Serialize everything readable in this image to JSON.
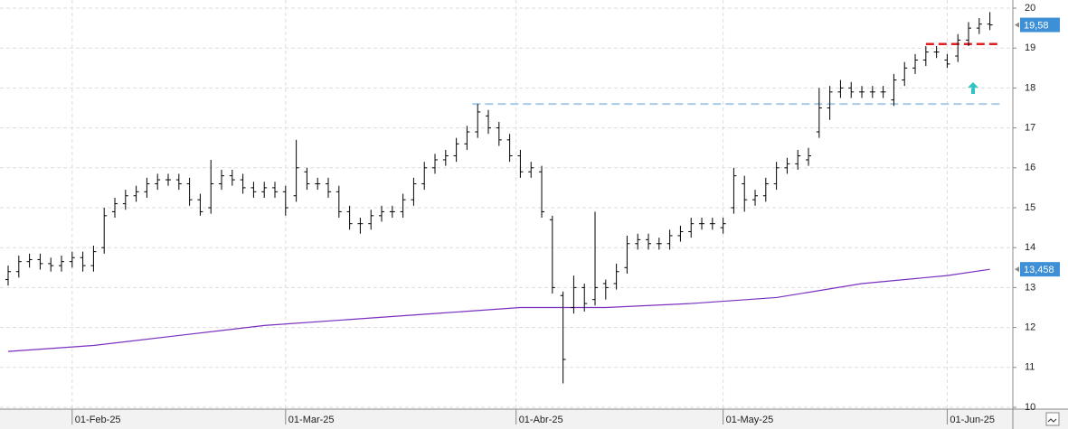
{
  "chart_data": {
    "type": "ohlc",
    "xlim": [
      -0.763,
      94.15
    ],
    "xticks": [
      {
        "value": 6,
        "label": "01-Feb-25"
      },
      {
        "value": 26,
        "label": "01-Mar-25"
      },
      {
        "value": 47.6,
        "label": "01-Abr-25"
      },
      {
        "value": 67,
        "label": "01-May-25"
      },
      {
        "value": 88,
        "label": "01-Jun-25"
      }
    ],
    "ylim": [
      10,
      20
    ],
    "yticks": [
      10,
      11,
      12,
      13,
      14,
      15,
      16,
      17,
      18,
      19,
      20
    ],
    "grid": true,
    "color": "#000000",
    "open": [
      13.2,
      13.4,
      13.65,
      13.7,
      13.6,
      13.55,
      13.65,
      13.75,
      13.55,
      14.0,
      14.9,
      15.1,
      15.3,
      15.4,
      15.6,
      15.7,
      15.7,
      15.6,
      15.2,
      15.0,
      15.6,
      15.8,
      15.7,
      15.5,
      15.4,
      15.5,
      15.4,
      15.3,
      15.9,
      15.6,
      15.6,
      15.4,
      14.9,
      14.6,
      14.6,
      14.8,
      14.9,
      14.9,
      15.2,
      15.6,
      16.0,
      16.2,
      16.3,
      16.6,
      16.9,
      17.3,
      17.0,
      16.7,
      16.3,
      15.9,
      15.9,
      14.7,
      12.8,
      12.5,
      13.0,
      12.7,
      13.1,
      13.1,
      13.5,
      14.1,
      14.2,
      14.1,
      14.1,
      14.3,
      14.4,
      14.6,
      14.6,
      14.5,
      15.0,
      15.6,
      15.2,
      15.3,
      15.6,
      16.0,
      16.1,
      16.2,
      16.9,
      17.5,
      17.9,
      18.0,
      17.9,
      17.9,
      17.9,
      17.7,
      18.2,
      18.5,
      18.7,
      18.9,
      18.7,
      18.8,
      19.2,
      19.5,
      19.6
    ],
    "high": [
      13.55,
      13.8,
      13.85,
      13.85,
      13.75,
      13.8,
      13.9,
      13.9,
      14.05,
      15.0,
      15.25,
      15.45,
      15.55,
      15.75,
      15.85,
      15.85,
      15.85,
      15.75,
      15.35,
      16.2,
      15.95,
      15.95,
      15.85,
      15.65,
      15.65,
      15.65,
      15.55,
      16.7,
      16.0,
      15.75,
      15.75,
      15.55,
      15.05,
      14.75,
      14.95,
      15.05,
      15.05,
      15.35,
      15.75,
      16.15,
      16.35,
      16.45,
      16.75,
      17.05,
      17.6,
      17.45,
      17.15,
      16.85,
      16.45,
      16.15,
      16.05,
      14.8,
      12.9,
      13.3,
      13.1,
      14.9,
      13.2,
      13.6,
      14.3,
      14.35,
      14.35,
      14.25,
      14.45,
      14.55,
      14.75,
      14.75,
      14.75,
      14.75,
      16.0,
      15.8,
      15.45,
      15.75,
      16.15,
      16.25,
      16.45,
      16.5,
      18.0,
      18.05,
      18.2,
      18.15,
      18.05,
      18.05,
      18.05,
      18.35,
      18.65,
      18.85,
      19.05,
      19.05,
      18.85,
      19.35,
      19.65,
      19.75,
      19.9
    ],
    "low": [
      13.05,
      13.25,
      13.5,
      13.45,
      13.4,
      13.4,
      13.5,
      13.4,
      13.4,
      13.85,
      14.75,
      14.95,
      15.15,
      15.25,
      15.45,
      15.55,
      15.45,
      15.05,
      14.8,
      14.85,
      15.45,
      15.55,
      15.35,
      15.25,
      15.25,
      15.25,
      14.8,
      15.15,
      15.45,
      15.45,
      15.25,
      14.75,
      14.45,
      14.35,
      14.45,
      14.65,
      14.75,
      14.75,
      15.05,
      15.45,
      15.85,
      16.05,
      16.15,
      16.45,
      16.75,
      16.85,
      16.55,
      16.15,
      15.75,
      15.75,
      14.75,
      12.85,
      10.6,
      12.35,
      12.4,
      12.55,
      12.7,
      12.95,
      13.35,
      13.95,
      13.95,
      13.95,
      13.95,
      14.15,
      14.25,
      14.45,
      14.45,
      14.35,
      14.85,
      14.9,
      15.05,
      15.15,
      15.45,
      15.85,
      15.95,
      16.05,
      16.75,
      17.2,
      17.75,
      17.75,
      17.75,
      17.75,
      17.75,
      17.55,
      18.05,
      18.35,
      18.55,
      18.75,
      18.5,
      18.65,
      19.05,
      19.35,
      19.45
    ],
    "close": [
      13.4,
      13.65,
      13.7,
      13.6,
      13.55,
      13.65,
      13.75,
      13.55,
      13.9,
      14.8,
      15.1,
      15.3,
      15.4,
      15.6,
      15.7,
      15.7,
      15.6,
      15.2,
      14.9,
      15.6,
      15.8,
      15.7,
      15.5,
      15.4,
      15.5,
      15.4,
      15.0,
      16.0,
      15.6,
      15.6,
      15.4,
      14.9,
      14.6,
      14.6,
      14.8,
      14.9,
      14.9,
      15.2,
      15.6,
      16.0,
      16.2,
      16.3,
      16.6,
      16.9,
      17.4,
      17.0,
      16.7,
      16.3,
      15.9,
      16.0,
      14.9,
      13.0,
      11.2,
      13.0,
      12.6,
      13.0,
      13.0,
      13.4,
      14.1,
      14.2,
      14.1,
      14.1,
      14.3,
      14.4,
      14.6,
      14.6,
      14.6,
      14.6,
      15.8,
      15.2,
      15.3,
      15.6,
      16.0,
      16.1,
      16.3,
      16.3,
      17.5,
      17.9,
      18.0,
      17.9,
      17.9,
      17.9,
      17.9,
      18.2,
      18.5,
      18.7,
      18.9,
      18.9,
      18.6,
      19.2,
      19.5,
      19.6,
      19.58
    ],
    "moving_average": {
      "color": "#7b2fbf",
      "x": [
        0,
        8,
        16,
        24,
        32,
        40,
        48,
        56,
        64,
        72,
        80,
        88,
        92
      ],
      "values": [
        11.4,
        11.55,
        11.8,
        12.05,
        12.2,
        12.35,
        12.5,
        12.5,
        12.6,
        12.75,
        13.1,
        13.3,
        13.458
      ]
    },
    "levels": [
      {
        "value": 19.1,
        "from": 86,
        "to": 93,
        "color": "#e02020"
      },
      {
        "value": 17.6,
        "from": 43.5,
        "to": 93,
        "color": "#a8cbe8"
      }
    ],
    "last_labels": [
      {
        "value": 19.58,
        "label": "19,58"
      },
      {
        "value": 13.458,
        "label": "13,458"
      }
    ]
  }
}
